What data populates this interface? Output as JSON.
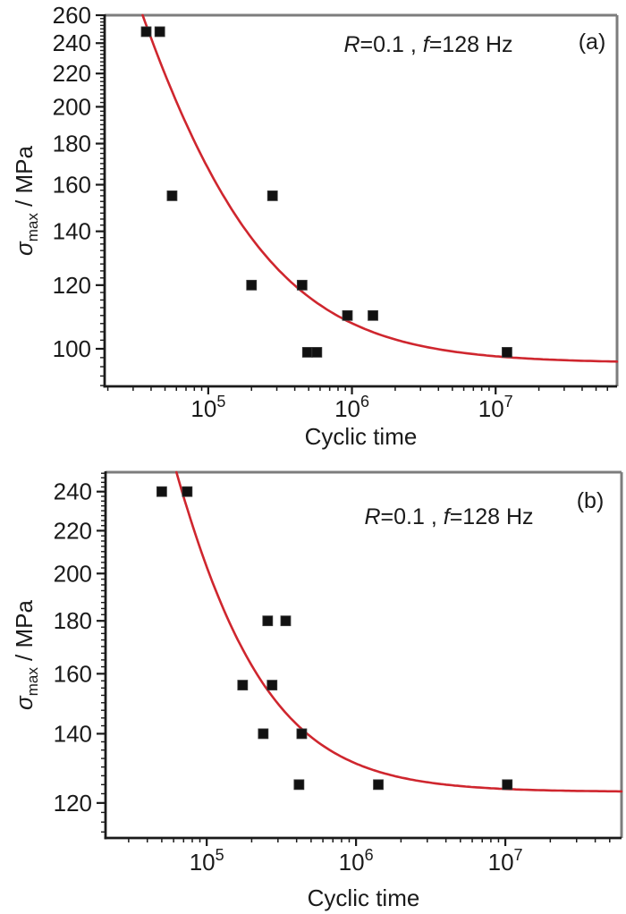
{
  "figure": {
    "background": "#ffffff",
    "description": "Two stacked S-N fatigue scatter plots with fitted curves"
  },
  "chart_data": [
    {
      "type": "scatter",
      "panel_label": "(a)",
      "annotation_parts": [
        {
          "t": "R",
          "i": true
        },
        {
          "t": "=0.1 , "
        },
        {
          "t": "f",
          "i": true
        },
        {
          "t": "=128 Hz"
        }
      ],
      "xlabel": "Cyclic time",
      "ylabel_parts": [
        {
          "t": "σ",
          "i": true
        },
        {
          "t": "max",
          "sub": true
        },
        {
          "t": " / MPa"
        }
      ],
      "x_scale": "log",
      "y_scale": "log",
      "xlim": [
        19000,
        70000000
      ],
      "ylim": [
        89.8,
        260
      ],
      "x_major_ticks": [
        {
          "value": 100000,
          "base": "10",
          "exp": "5"
        },
        {
          "value": 1000000,
          "base": "10",
          "exp": "6"
        },
        {
          "value": 10000000,
          "base": "10",
          "exp": "7"
        }
      ],
      "y_major_ticks": [
        100,
        120,
        140,
        160,
        180,
        200,
        220,
        240,
        260
      ],
      "y_minor_step": 2.5,
      "grid": false,
      "legend": "none",
      "points": [
        [
          37000,
          248
        ],
        [
          46000,
          248
        ],
        [
          56000,
          155
        ],
        [
          280000,
          155
        ],
        [
          200000,
          120
        ],
        [
          450000,
          120
        ],
        [
          490000,
          99
        ],
        [
          570000,
          99
        ],
        [
          930000,
          110
        ],
        [
          1400000,
          110
        ],
        [
          12000000,
          99
        ]
      ],
      "curve_fit": {
        "sigma_inf": 96,
        "coef": 637000,
        "exp": 0.79
      },
      "colors": {
        "curve": "#cf262e",
        "marker": "#111111",
        "axis": "#1a1a1a",
        "frame_top_right": "#7d7d7d",
        "text": "#1a1a1a"
      }
    },
    {
      "type": "scatter",
      "panel_label": "(b)",
      "annotation_parts": [
        {
          "t": "R",
          "i": true
        },
        {
          "t": "=0.1 , "
        },
        {
          "t": "f",
          "i": true
        },
        {
          "t": "=128 Hz"
        }
      ],
      "xlabel": "Cyclic time",
      "ylabel_parts": [
        {
          "t": "σ",
          "i": true
        },
        {
          "t": "max",
          "sub": true
        },
        {
          "t": " / MPa"
        }
      ],
      "x_scale": "log",
      "y_scale": "log",
      "xlim": [
        21000,
        60000000
      ],
      "ylim": [
        111,
        250.6
      ],
      "x_major_ticks": [
        {
          "value": 100000,
          "base": "10",
          "exp": "5"
        },
        {
          "value": 1000000,
          "base": "10",
          "exp": "6"
        },
        {
          "value": 10000000,
          "base": "10",
          "exp": "7"
        }
      ],
      "y_major_ticks": [
        120,
        140,
        160,
        180,
        200,
        220,
        240
      ],
      "y_minor_step": 2.5,
      "grid": false,
      "legend": "none",
      "points": [
        [
          50000,
          240
        ],
        [
          74000,
          240
        ],
        [
          174000,
          156
        ],
        [
          274000,
          156
        ],
        [
          256000,
          180
        ],
        [
          338000,
          180
        ],
        [
          239000,
          140
        ],
        [
          433000,
          140
        ],
        [
          415000,
          125
        ],
        [
          1410000,
          125
        ],
        [
          10300000,
          125
        ]
      ],
      "curve_fit": {
        "sigma_inf": 123,
        "coef": 8000000,
        "exp": 1.0
      },
      "colors": {
        "curve": "#cf262e",
        "marker": "#111111",
        "axis": "#1a1a1a",
        "frame_top_right": "#7d7d7d",
        "text": "#1a1a1a"
      }
    }
  ]
}
